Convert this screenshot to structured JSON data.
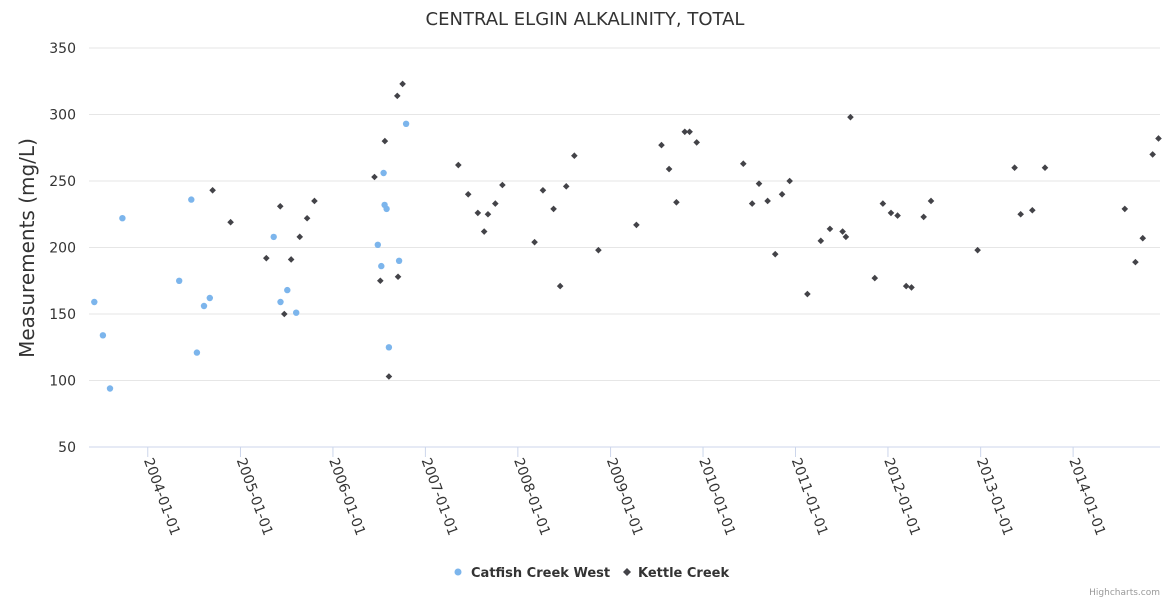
{
  "chart_data": {
    "type": "scatter",
    "title": "CENTRAL ELGIN ALKALINITY, TOTAL",
    "ylabel": "Measurements (mg/L)",
    "xlabel": "",
    "ylim": [
      50,
      350
    ],
    "yticks": [
      50,
      100,
      150,
      200,
      250,
      300,
      350
    ],
    "xlim": [
      "2003-05-14",
      "2014-12-10"
    ],
    "xticks": [
      "2004-01-01",
      "2005-01-01",
      "2006-01-01",
      "2007-01-01",
      "2008-01-01",
      "2009-01-01",
      "2010-01-01",
      "2011-01-01",
      "2012-01-01",
      "2013-01-01",
      "2014-01-01"
    ],
    "legend_position": "bottom-center",
    "credit": "Highcharts.com",
    "series": [
      {
        "name": "Catfish Creek West",
        "color": "#7cb5ec",
        "marker": "circle",
        "points": [
          [
            "2003-06-04",
            159
          ],
          [
            "2003-07-08",
            134
          ],
          [
            "2003-08-05",
            94
          ],
          [
            "2003-09-23",
            222
          ],
          [
            "2004-05-04",
            175
          ],
          [
            "2004-06-21",
            236
          ],
          [
            "2004-07-13",
            121
          ],
          [
            "2004-08-10",
            156
          ],
          [
            "2004-09-02",
            162
          ],
          [
            "2005-05-12",
            208
          ],
          [
            "2005-06-08",
            159
          ],
          [
            "2005-07-05",
            168
          ],
          [
            "2005-08-09",
            151
          ],
          [
            "2006-06-27",
            202
          ],
          [
            "2006-07-11",
            186
          ],
          [
            "2006-07-20",
            256
          ],
          [
            "2006-07-24",
            232
          ],
          [
            "2006-08-01",
            229
          ],
          [
            "2006-08-10",
            125
          ],
          [
            "2006-09-19",
            190
          ],
          [
            "2006-10-17",
            293
          ]
        ]
      },
      {
        "name": "Kettle Creek",
        "color": "#434348",
        "marker": "diamond",
        "points": [
          [
            "2004-09-13",
            243
          ],
          [
            "2004-11-23",
            219
          ],
          [
            "2005-04-13",
            192
          ],
          [
            "2005-06-07",
            231
          ],
          [
            "2005-06-23",
            150
          ],
          [
            "2005-07-20",
            191
          ],
          [
            "2005-08-23",
            208
          ],
          [
            "2005-09-21",
            222
          ],
          [
            "2005-10-20",
            235
          ],
          [
            "2006-06-14",
            253
          ],
          [
            "2006-07-07",
            175
          ],
          [
            "2006-07-25",
            280
          ],
          [
            "2006-08-10",
            103
          ],
          [
            "2006-09-12",
            314
          ],
          [
            "2006-09-15",
            178
          ],
          [
            "2006-10-03",
            323
          ],
          [
            "2007-05-11",
            262
          ],
          [
            "2007-06-19",
            240
          ],
          [
            "2007-07-27",
            226
          ],
          [
            "2007-08-21",
            212
          ],
          [
            "2007-09-05",
            225
          ],
          [
            "2007-10-04",
            233
          ],
          [
            "2007-11-01",
            247
          ],
          [
            "2008-03-07",
            204
          ],
          [
            "2008-04-09",
            243
          ],
          [
            "2008-05-21",
            229
          ],
          [
            "2008-06-16",
            171
          ],
          [
            "2008-07-10",
            246
          ],
          [
            "2008-08-11",
            269
          ],
          [
            "2008-11-14",
            198
          ],
          [
            "2009-04-13",
            217
          ],
          [
            "2009-07-21",
            277
          ],
          [
            "2009-08-20",
            259
          ],
          [
            "2009-09-18",
            234
          ],
          [
            "2009-10-21",
            287
          ],
          [
            "2009-11-09",
            287
          ],
          [
            "2009-12-07",
            279
          ],
          [
            "2010-06-09",
            263
          ],
          [
            "2010-07-14",
            233
          ],
          [
            "2010-08-10",
            248
          ],
          [
            "2010-09-13",
            235
          ],
          [
            "2010-10-13",
            195
          ],
          [
            "2010-11-09",
            240
          ],
          [
            "2010-12-09",
            250
          ],
          [
            "2011-02-17",
            165
          ],
          [
            "2011-04-11",
            205
          ],
          [
            "2011-05-17",
            214
          ],
          [
            "2011-07-06",
            212
          ],
          [
            "2011-07-19",
            208
          ],
          [
            "2011-08-06",
            298
          ],
          [
            "2011-11-10",
            177
          ],
          [
            "2011-12-12",
            233
          ],
          [
            "2012-01-13",
            226
          ],
          [
            "2012-02-08",
            224
          ],
          [
            "2012-03-13",
            171
          ],
          [
            "2012-04-03",
            170
          ],
          [
            "2012-05-21",
            223
          ],
          [
            "2012-06-19",
            235
          ],
          [
            "2012-12-20",
            198
          ],
          [
            "2013-05-15",
            260
          ],
          [
            "2013-06-08",
            225
          ],
          [
            "2013-07-24",
            228
          ],
          [
            "2013-09-12",
            260
          ],
          [
            "2014-07-24",
            229
          ],
          [
            "2014-09-04",
            189
          ],
          [
            "2014-10-03",
            207
          ],
          [
            "2014-11-11",
            270
          ],
          [
            "2014-12-04",
            282
          ]
        ]
      }
    ]
  }
}
